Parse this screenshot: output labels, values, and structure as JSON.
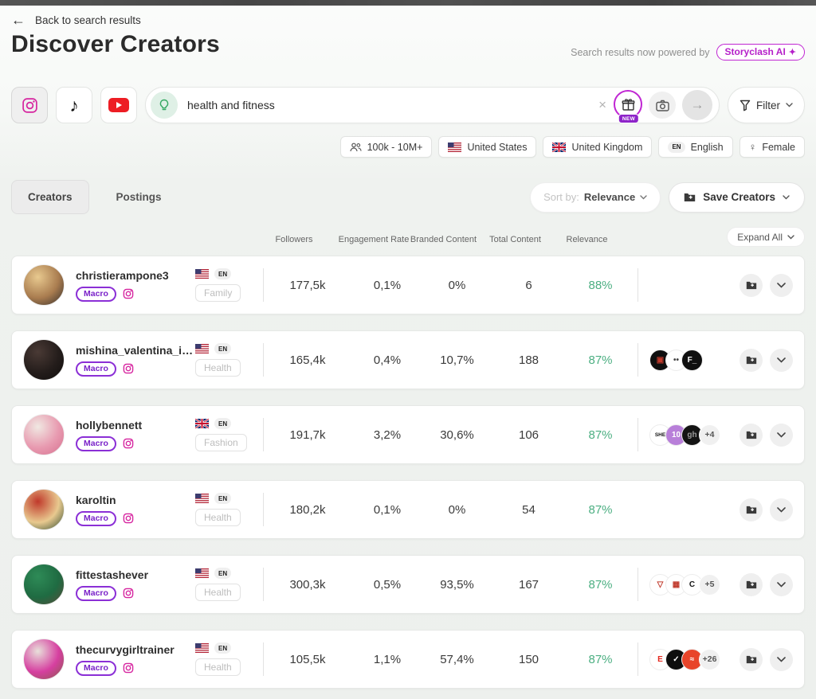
{
  "header": {
    "back_label": "Back to search results",
    "title": "Discover Creators",
    "powered_by_text": "Search results now powered by",
    "powered_by_badge": "Storyclash AI",
    "sparkle": "✦"
  },
  "search": {
    "platforms": [
      {
        "id": "instagram",
        "icon": "instagram-icon",
        "selected": true
      },
      {
        "id": "tiktok",
        "icon": "tiktok-icon",
        "selected": false
      },
      {
        "id": "youtube",
        "icon": "youtube-icon",
        "selected": false
      }
    ],
    "query": "health and fitness",
    "clear_glyph": "×",
    "new_badge": "NEW",
    "go_glyph": "→",
    "filter_label": "Filter"
  },
  "chips": [
    {
      "icon": "followers-icon",
      "label": "100k - 10M+"
    },
    {
      "icon": "flag-us-icon",
      "label": "United States"
    },
    {
      "icon": "flag-gb-icon",
      "label": "United Kingdom"
    },
    {
      "icon": "en-badge",
      "badge": "EN",
      "label": "English"
    },
    {
      "icon": "female-icon",
      "glyph": "♀",
      "label": "Female"
    }
  ],
  "tabs": [
    {
      "label": "Creators",
      "active": true
    },
    {
      "label": "Postings",
      "active": false
    }
  ],
  "toolbar": {
    "sort_prefix": "Sort by:",
    "sort_value": "Relevance",
    "save_label": "Save Creators",
    "expand_label": "Expand All"
  },
  "columns": [
    "Followers",
    "Engagement Rate",
    "Branded Content",
    "Total Content",
    "Relevance"
  ],
  "creators": [
    {
      "username": "christierampone3",
      "tier": "Macro",
      "country": "us",
      "language": "EN",
      "category": "Family",
      "followers": "177,5k",
      "engagement_rate": "0,1%",
      "branded_content": "0%",
      "total_content": "6",
      "relevance": "88%",
      "avatar_colors": [
        "#e8c98f",
        "#a97c4f",
        "#332e2b"
      ],
      "right_divider": true,
      "brands": [],
      "more": ""
    },
    {
      "username": "mishina_valentina_if…",
      "tier": "Macro",
      "country": "us",
      "language": "EN",
      "category": "Health",
      "followers": "165,4k",
      "engagement_rate": "0,4%",
      "branded_content": "10,7%",
      "total_content": "188",
      "relevance": "87%",
      "avatar_colors": [
        "#4a3a35",
        "#241d1b",
        "#100d0c"
      ],
      "right_divider": true,
      "brands": [
        {
          "bg": "#0f0f0f",
          "fg": "#c0392b",
          "glyph": "▣"
        },
        {
          "bg": "#ffffff",
          "fg": "#444444",
          "glyph": "••"
        },
        {
          "bg": "#0f0f0f",
          "fg": "#ffffff",
          "glyph": "F_"
        }
      ],
      "more": ""
    },
    {
      "username": "hollybennett",
      "tier": "Macro",
      "country": "gb",
      "language": "EN",
      "category": "Fashion",
      "followers": "191,7k",
      "engagement_rate": "3,2%",
      "branded_content": "30,6%",
      "total_content": "106",
      "relevance": "87%",
      "avatar_colors": [
        "#f0e8e2",
        "#e89ab0",
        "#d6708f"
      ],
      "right_divider": true,
      "brands": [
        {
          "bg": "#ffffff",
          "fg": "#111111",
          "glyph": "SHE"
        },
        {
          "bg": "#b87fd9",
          "fg": "#ffffff",
          "glyph": "10"
        },
        {
          "bg": "#141414",
          "fg": "#9a9a9a",
          "glyph": "gh"
        }
      ],
      "more": "+4"
    },
    {
      "username": "karoltin",
      "tier": "Macro",
      "country": "us",
      "language": "EN",
      "category": "Health",
      "followers": "180,2k",
      "engagement_rate": "0,1%",
      "branded_content": "0%",
      "total_content": "54",
      "relevance": "87%",
      "avatar_colors": [
        "#c0392b",
        "#e8c98f",
        "#2e4a2e"
      ],
      "right_divider": false,
      "brands": [],
      "more": ""
    },
    {
      "username": "fittestashever",
      "tier": "Macro",
      "country": "us",
      "language": "EN",
      "category": "Health",
      "followers": "300,3k",
      "engagement_rate": "0,5%",
      "branded_content": "93,5%",
      "total_content": "167",
      "relevance": "87%",
      "avatar_colors": [
        "#2e8b57",
        "#1f6b42",
        "#5a4a3a"
      ],
      "right_divider": true,
      "brands": [
        {
          "bg": "#ffffff",
          "fg": "#c0392b",
          "glyph": "▽"
        },
        {
          "bg": "#ffffff",
          "fg": "#c0392b",
          "glyph": "▦"
        },
        {
          "bg": "#ffffff",
          "fg": "#141414",
          "glyph": "C"
        }
      ],
      "more": "+5"
    },
    {
      "username": "thecurvygirltrainer",
      "tier": "Macro",
      "country": "us",
      "language": "EN",
      "category": "Health",
      "followers": "105,5k",
      "engagement_rate": "1,1%",
      "branded_content": "57,4%",
      "total_content": "150",
      "relevance": "87%",
      "avatar_colors": [
        "#e8e0da",
        "#d63fa0",
        "#8a5a4a"
      ],
      "right_divider": true,
      "brands": [
        {
          "bg": "#ffffff",
          "fg": "#e4281e",
          "glyph": "E"
        },
        {
          "bg": "#0d0d0d",
          "fg": "#ffffff",
          "glyph": "✓"
        },
        {
          "bg": "#e8442a",
          "fg": "#ffffff",
          "glyph": "≈"
        }
      ],
      "more": "+26"
    }
  ],
  "colors": {
    "accent_purple": "#8b2fd6",
    "badge_magenta": "#c026d3",
    "relevance_green": "#4caf82",
    "instagram_pink": "#d6249f",
    "youtube_red": "#ed1d24"
  }
}
